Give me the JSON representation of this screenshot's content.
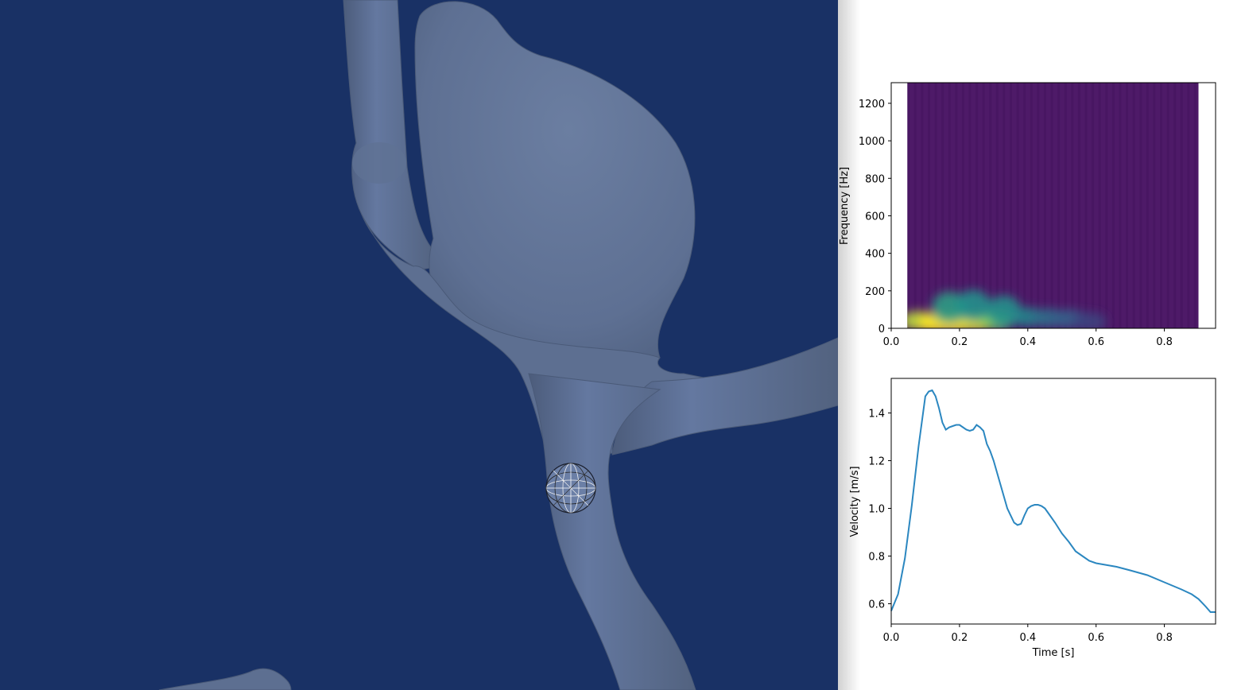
{
  "viewport": {
    "background": "#193165",
    "vessel_color": "#5f7193",
    "probe_icon": "wireframe-sphere"
  },
  "chart_data": [
    {
      "type": "heatmap",
      "title": "",
      "xlabel": "",
      "ylabel": "Frequency [Hz]",
      "xlim": [
        0.0,
        0.95
      ],
      "ylim": [
        0,
        1310
      ],
      "xticks": [
        "0.0",
        "0.2",
        "0.4",
        "0.6",
        "0.8"
      ],
      "yticks": [
        "0",
        "200",
        "400",
        "600",
        "800",
        "1000",
        "1200"
      ],
      "data_x_range": [
        0.047,
        0.9
      ],
      "colormap": "viridis",
      "background_value_color": "#4e1a68",
      "grid": false,
      "hotspots": [
        {
          "t": 0.08,
          "f": 40,
          "intensity": 0.9
        },
        {
          "t": 0.13,
          "f": 30,
          "intensity": 1.0
        },
        {
          "t": 0.19,
          "f": 30,
          "intensity": 1.0
        },
        {
          "t": 0.25,
          "f": 35,
          "intensity": 0.95
        },
        {
          "t": 0.31,
          "f": 40,
          "intensity": 0.8
        },
        {
          "t": 0.17,
          "f": 110,
          "intensity": 0.55
        },
        {
          "t": 0.24,
          "f": 120,
          "intensity": 0.5
        },
        {
          "t": 0.33,
          "f": 90,
          "intensity": 0.5
        },
        {
          "t": 0.4,
          "f": 60,
          "intensity": 0.45
        },
        {
          "t": 0.46,
          "f": 55,
          "intensity": 0.35
        },
        {
          "t": 0.52,
          "f": 50,
          "intensity": 0.3
        },
        {
          "t": 0.58,
          "f": 35,
          "intensity": 0.2
        }
      ]
    },
    {
      "type": "line",
      "title": "",
      "xlabel": "Time [s]",
      "ylabel": "Velocity [m/s]",
      "xlim": [
        0.0,
        0.95
      ],
      "ylim": [
        0.515,
        1.545
      ],
      "xticks": [
        "0.0",
        "0.2",
        "0.4",
        "0.6",
        "0.8"
      ],
      "yticks": [
        "0.6",
        "0.8",
        "1.0",
        "1.2",
        "1.4"
      ],
      "grid": false,
      "line_color": "#2b87c0",
      "series": [
        {
          "x": [
            0.0,
            0.02,
            0.04,
            0.06,
            0.08,
            0.1,
            0.11,
            0.12,
            0.13,
            0.14,
            0.15,
            0.16,
            0.17,
            0.18,
            0.19,
            0.2,
            0.21,
            0.22,
            0.23,
            0.24,
            0.25,
            0.26,
            0.27,
            0.28,
            0.29,
            0.3,
            0.32,
            0.34,
            0.36,
            0.37,
            0.38,
            0.39,
            0.4,
            0.41,
            0.42,
            0.43,
            0.44,
            0.45,
            0.46,
            0.48,
            0.5,
            0.52,
            0.54,
            0.56,
            0.58,
            0.6,
            0.62,
            0.64,
            0.66,
            0.7,
            0.75,
            0.8,
            0.85,
            0.88,
            0.9,
            0.92,
            0.935,
            0.95
          ],
          "y": [
            0.57,
            0.64,
            0.79,
            1.01,
            1.26,
            1.47,
            1.49,
            1.495,
            1.47,
            1.42,
            1.36,
            1.33,
            1.34,
            1.345,
            1.35,
            1.35,
            1.34,
            1.33,
            1.325,
            1.33,
            1.35,
            1.34,
            1.325,
            1.27,
            1.24,
            1.2,
            1.1,
            1.0,
            0.94,
            0.93,
            0.935,
            0.97,
            1.0,
            1.01,
            1.015,
            1.015,
            1.01,
            1.0,
            0.98,
            0.94,
            0.895,
            0.86,
            0.82,
            0.8,
            0.78,
            0.77,
            0.765,
            0.76,
            0.755,
            0.74,
            0.72,
            0.69,
            0.66,
            0.64,
            0.62,
            0.59,
            0.565,
            0.565
          ]
        }
      ]
    }
  ]
}
